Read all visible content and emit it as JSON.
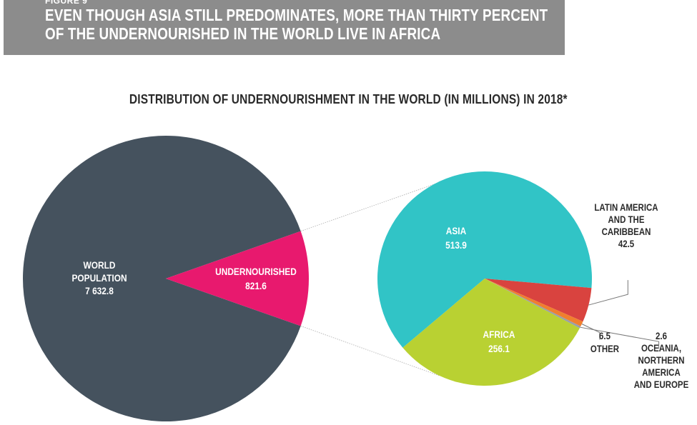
{
  "header": {
    "figure_label": "FIGURE 9",
    "title_line1": "EVEN THOUGH ASIA STILL PREDOMINATES, MORE THAN THIRTY PERCENT",
    "title_line2": "OF THE UNDERNOURISHED IN THE WORLD LIVE IN AFRICA"
  },
  "chart_data": [
    {
      "type": "pie",
      "title": "DISTRIBUTION OF UNDERNOURISHMENT IN THE WORLD (IN MILLIONS) IN 2018*",
      "total": {
        "label_line1": "WORLD",
        "label_line2": "POPULATION",
        "value_text": "7 632.8",
        "value": 7632.8
      },
      "slices": [
        {
          "name": "UNDERNOURISHED",
          "value": 821.6,
          "value_text": "821.6",
          "color": "#e8196e"
        }
      ],
      "remainder_color": "#45525e"
    },
    {
      "type": "pie",
      "slices": [
        {
          "name": "ASIA",
          "value": 513.9,
          "value_text": "513.9",
          "color": "#31c4c6"
        },
        {
          "name": "LATIN AMERICA AND THE CARIBBEAN",
          "label_lines": [
            "LATIN AMERICA",
            "AND THE",
            "CARIBBEAN"
          ],
          "value": 42.5,
          "value_text": "42.5",
          "color": "#d9433f"
        },
        {
          "name": "OTHER",
          "value": 6.5,
          "value_text": "6.5",
          "color": "#f07f2e"
        },
        {
          "name": "OCEANIA, NORTHERN AMERICA AND EUROPE",
          "label_lines": [
            "OCEANIA,",
            "NORTHERN",
            "AMERICA",
            "AND EUROPE"
          ],
          "value": 2.6,
          "value_text": "2.6",
          "color": "#9a9fa6"
        },
        {
          "name": "AFRICA",
          "value": 256.1,
          "value_text": "256.1",
          "color": "#b9d132"
        }
      ]
    }
  ]
}
